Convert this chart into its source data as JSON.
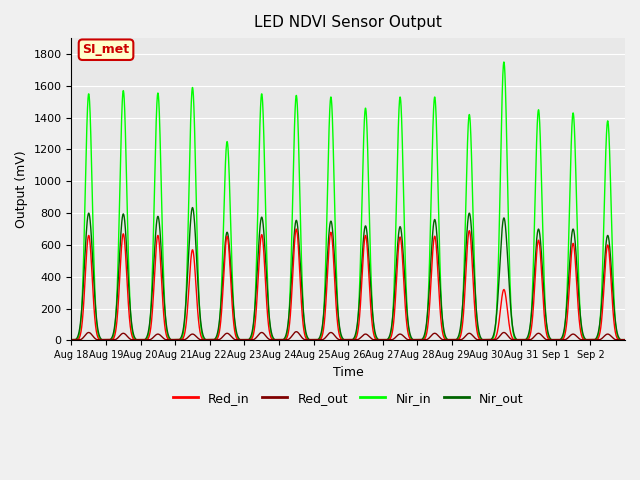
{
  "title": "LED NDVI Sensor Output",
  "xlabel": "Time",
  "ylabel": "Output (mV)",
  "ylim": [
    0,
    1900
  ],
  "yticks": [
    0,
    200,
    400,
    600,
    800,
    1000,
    1200,
    1400,
    1600,
    1800
  ],
  "x_labels": [
    "Aug 18",
    "Aug 19",
    "Aug 20",
    "Aug 21",
    "Aug 22",
    "Aug 23",
    "Aug 24",
    "Aug 25",
    "Aug 26",
    "Aug 27",
    "Aug 28",
    "Aug 29",
    "Aug 30",
    "Aug 31",
    "Sep 1",
    "Sep 2"
  ],
  "num_days": 16,
  "annotation_text": "SI_met",
  "annotation_bg": "#ffffcc",
  "annotation_border": "#cc0000",
  "annotation_text_color": "#cc0000",
  "colors": {
    "Red_in": "#ff0000",
    "Red_out": "#800000",
    "Nir_in": "#00ff00",
    "Nir_out": "#006400"
  },
  "bg_color": "#e8e8e8",
  "grid_color": "#ffffff",
  "nir_in_peaks": [
    1550,
    1570,
    1555,
    1590,
    1250,
    1550,
    1540,
    1530,
    1460,
    1530,
    1530,
    1420,
    1750,
    1450,
    1430,
    1380
  ],
  "nir_out_peaks": [
    800,
    795,
    780,
    835,
    680,
    775,
    755,
    750,
    720,
    715,
    760,
    800,
    770,
    700,
    700,
    660
  ],
  "red_in_peaks": [
    660,
    670,
    660,
    570,
    655,
    665,
    700,
    680,
    660,
    650,
    655,
    690,
    320,
    630,
    610,
    600
  ],
  "red_out_peaks": [
    50,
    45,
    40,
    40,
    45,
    50,
    55,
    50,
    40,
    40,
    45,
    45,
    50,
    45,
    40,
    40
  ]
}
